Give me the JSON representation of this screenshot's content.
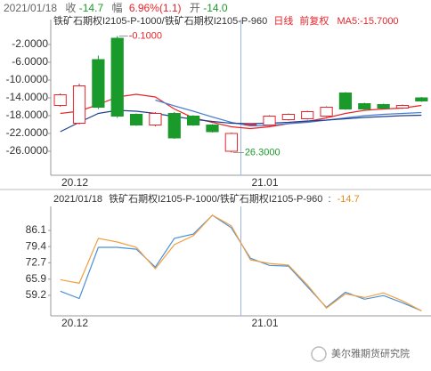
{
  "chart_data": [
    {
      "type": "candlestick",
      "date": "2021/01/18",
      "close_label": "收",
      "close_text": "-14.7",
      "change_label": "幅",
      "change_text": "6.96%(1.1)",
      "open_label": "开",
      "open_text": "-14.0",
      "title": "铁矿石期权I2105-P-1000/铁矿石期权I2105-P-960",
      "period": "日线",
      "adjust": "前复权",
      "ma_label": "MA5:-15.7000",
      "annotations": [
        "-0.1000",
        "26.3000"
      ],
      "categories": [
        "20.12",
        null,
        null,
        null,
        null,
        null,
        null,
        null,
        null,
        null,
        "21.01",
        null,
        null,
        null,
        null,
        null,
        null,
        null,
        null,
        null
      ],
      "open": [
        -15.7,
        -19.7,
        -5.4,
        -0.6,
        -17.7,
        -20.1,
        -17.5,
        -18.1,
        -20.1,
        -26.0,
        -20.0,
        -20.1,
        -18.9,
        -18.7,
        -18.1,
        -12.9,
        -15.3,
        -15.5,
        -16.3,
        -14.0
      ],
      "high": [
        -13.0,
        -10.8,
        -4.5,
        -0.1,
        -17.5,
        -17.2,
        -17.2,
        -17.9,
        -19.9,
        -21.8,
        -19.8,
        -17.9,
        -17.5,
        -16.9,
        -15.9,
        -12.7,
        -15.1,
        -15.3,
        -15.5,
        -13.8
      ],
      "low": [
        -16.0,
        -20.0,
        -16.5,
        -18.5,
        -20.3,
        -20.4,
        -23.2,
        -20.3,
        -21.8,
        -26.3,
        -20.2,
        -20.3,
        -19.1,
        -18.9,
        -18.3,
        -16.7,
        -16.7,
        -16.5,
        -16.5,
        -14.9
      ],
      "close": [
        -13.3,
        -11.3,
        -16.1,
        -18.1,
        -20.1,
        -17.5,
        -23.0,
        -20.1,
        -21.6,
        -22.0,
        -19.9,
        -18.1,
        -17.7,
        -17.1,
        -16.1,
        -16.5,
        -16.5,
        -16.3,
        -15.7,
        -14.7
      ],
      "up_color": "#e8242a",
      "down_color": "#1a9a2a",
      "lines": [
        {
          "color": "#e8242a",
          "values": [
            -17.5,
            -17.0,
            -15.5,
            -13.8,
            -13.2,
            -13.8,
            -16.5,
            -18.5,
            -19.5,
            -20.5,
            -20.9,
            -20.5,
            -19.8,
            -19.3,
            -18.5,
            -17.5,
            -16.8,
            -16.5,
            -16.3,
            -15.7
          ]
        },
        {
          "color": "#4a7fd0",
          "values": [
            null,
            null,
            null,
            null,
            null,
            -14.5,
            -15.8,
            -17.0,
            -18.3,
            -19.5,
            -20.3,
            -20.2,
            -19.8,
            -19.5,
            -19.0,
            -18.5,
            -18.0,
            -17.7,
            -17.5,
            -17.3
          ]
        },
        {
          "color": "#1f3f8f",
          "values": [
            -21.6,
            -19.5,
            -17.5,
            -16.8,
            -17.0,
            -17.5,
            -18.2,
            -18.8,
            -19.3,
            -19.7,
            -19.8,
            -19.7,
            -19.5,
            -19.2,
            -19.0,
            -18.7,
            -18.4,
            -18.2,
            -18.0,
            -17.9
          ]
        }
      ],
      "ylim": [
        -31,
        2
      ],
      "yticks": [
        {
          "value": -2,
          "label": "-2.0000"
        },
        {
          "value": -6,
          "label": "-6.0000"
        },
        {
          "value": -10,
          "label": "-10.0000"
        },
        {
          "value": -14,
          "label": "-14.0000"
        },
        {
          "value": -18,
          "label": "-18.0000"
        },
        {
          "value": -22,
          "label": "-22.0000"
        },
        {
          "value": -26,
          "label": "-26.0000"
        }
      ]
    },
    {
      "type": "line",
      "date": "2021/01/18",
      "title": "铁矿石期权I2105-P-1000/铁矿石期权I2105-P-960",
      "label_suffix": ":",
      "value_text": "-14.7",
      "categories": [
        "20.12",
        null,
        null,
        null,
        null,
        null,
        null,
        null,
        null,
        null,
        "21.01",
        null,
        null,
        null,
        null,
        null,
        null,
        null,
        null,
        null
      ],
      "series": [
        {
          "color": "#4a90d9",
          "values": [
            60.9,
            57.9,
            79.1,
            79.1,
            78.3,
            70.9,
            82.8,
            84.6,
            92.4,
            87.2,
            74.6,
            71.6,
            71.3,
            62.8,
            54.2,
            60.5,
            57.6,
            59.1,
            56.1,
            52.8
          ]
        },
        {
          "color": "#f0a040",
          "values": [
            65.7,
            64.2,
            82.8,
            81.3,
            79.1,
            70.2,
            80.2,
            83.9,
            92.4,
            88.0,
            73.9,
            72.4,
            71.7,
            63.5,
            53.9,
            59.8,
            58.3,
            60.2,
            56.9,
            52.8
          ]
        }
      ],
      "ylim": [
        51.8,
        93.1
      ],
      "yticks": [
        86.1,
        79.4,
        72.7,
        65.9,
        59.2
      ]
    }
  ],
  "watermark": "美尔雅期货研究院"
}
